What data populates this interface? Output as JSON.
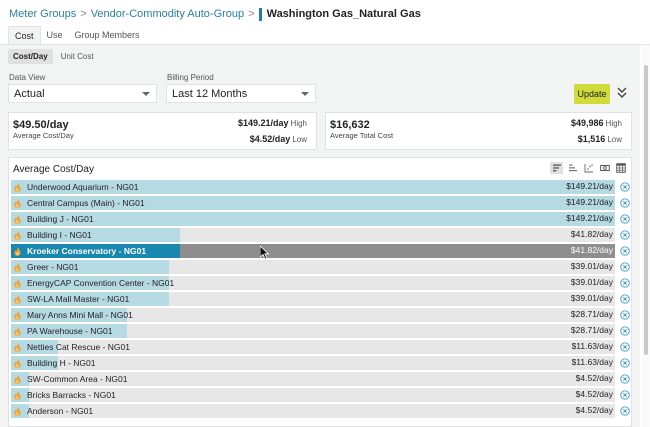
{
  "breadcrumb": {
    "items": [
      "Meter Groups",
      "Vendor-Commodity Auto-Group"
    ],
    "separator": ">",
    "current": "Washington Gas_Natural Gas"
  },
  "tabs": [
    {
      "label": "Cost",
      "active": true
    },
    {
      "label": "Use",
      "active": false
    },
    {
      "label": "Group Members",
      "active": false
    }
  ],
  "subtabs": [
    {
      "label": "Cost/Day",
      "active": true
    },
    {
      "label": "Unit Cost",
      "active": false
    }
  ],
  "filters": {
    "data_view": {
      "label": "Data View",
      "value": "Actual"
    },
    "billing_period": {
      "label": "Billing Period",
      "value": "Last 12 Months"
    },
    "update_label": "Update"
  },
  "cards": {
    "cost_day": {
      "value": "$49.50/day",
      "label": "Average Cost/Day",
      "high": "$149.21/day",
      "high_tag": "High",
      "low": "$4.52/day",
      "low_tag": "Low"
    },
    "total_cost": {
      "value": "$16,632",
      "label": "Average Total Cost",
      "high": "$49,986",
      "high_tag": "High",
      "low": "$1,516",
      "low_tag": "Low"
    }
  },
  "panel": {
    "title": "Average Cost/Day",
    "toolbar": [
      "sort-desc-icon",
      "sort-asc-icon",
      "scatter-icon",
      "money-icon",
      "table-icon"
    ]
  },
  "colors": {
    "accent": "#1a87b0",
    "bar": "#b5dae4",
    "track": "#e7e7e7",
    "selected_track": "#8e8e8e",
    "update_button": "#cedb39",
    "link": "#2b7ea1",
    "flame": "#f0a030"
  },
  "chart_data": {
    "type": "bar",
    "title": "Average Cost/Day",
    "orientation": "horizontal",
    "categories": [
      "Underwood Aquarium - NG01",
      "Central Campus (Main) - NG01",
      "Building J - NG01",
      "Building I - NG01",
      "Kroeker Conservatory - NG01",
      "Greer - NG01",
      "EnergyCAP Convention Center - NG01",
      "SW-LA Mall Master - NG01",
      "Mary Anns Mini Mall - NG01",
      "PA Warehouse - NG01",
      "Netties Cat Rescue - NG01",
      "Building H - NG01",
      "SW-Common Area - NG01",
      "Bricks Barracks - NG01",
      "Anderson - NG01"
    ],
    "values": [
      149.21,
      149.21,
      149.21,
      41.82,
      41.82,
      39.01,
      39.01,
      39.01,
      28.71,
      28.71,
      11.63,
      11.63,
      4.52,
      4.52,
      4.52
    ],
    "value_labels": [
      "$149.21/day",
      "$149.21/day",
      "$149.21/day",
      "$41.82/day",
      "$41.82/day",
      "$39.01/day",
      "$39.01/day",
      "$39.01/day",
      "$28.71/day",
      "$28.71/day",
      "$11.63/day",
      "$11.63/day",
      "$4.52/day",
      "$4.52/day",
      "$4.52/day"
    ],
    "selected_index": 4,
    "xmax": 149.21,
    "xlabel": "",
    "ylabel": "",
    "grid": false
  }
}
